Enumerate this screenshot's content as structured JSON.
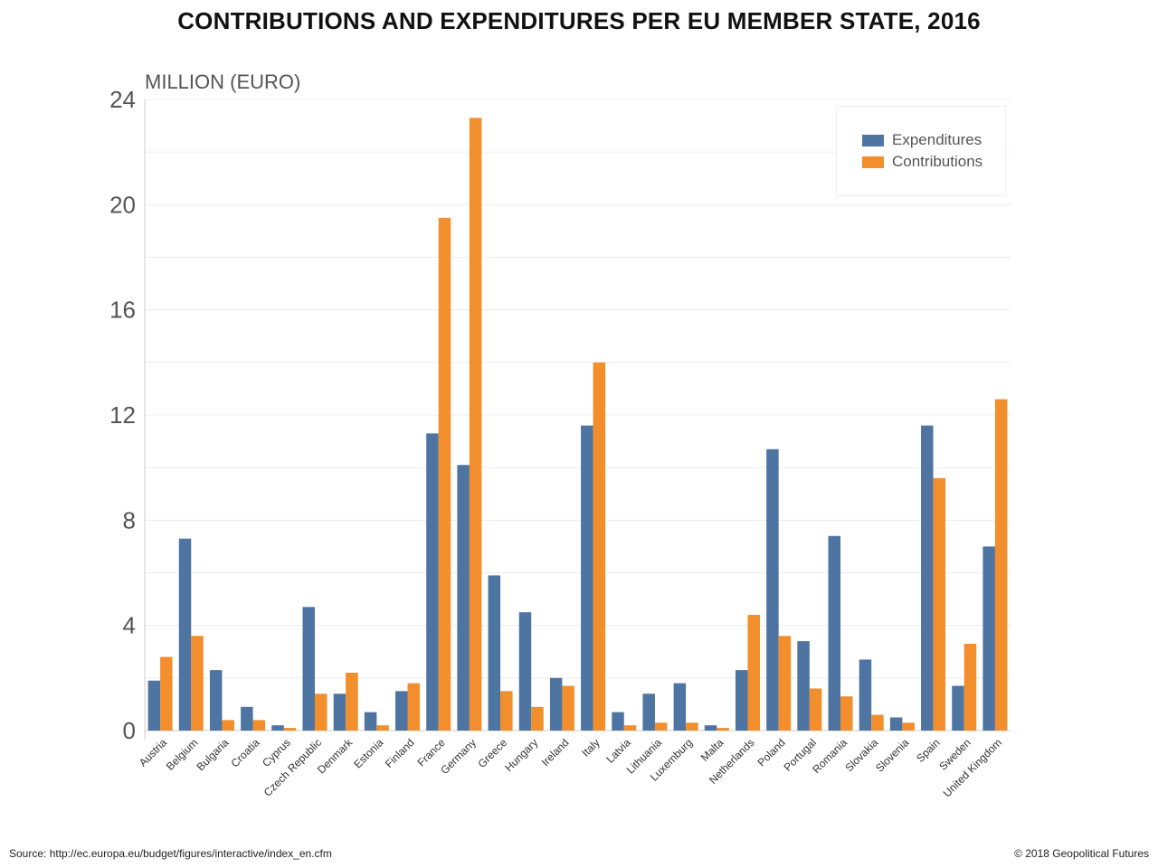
{
  "title": "CONTRIBUTIONS AND EXPENDITURES PER EU MEMBER STATE, 2016",
  "footer": {
    "source": "Source:  http://ec.europa.eu/budget/figures/interactive/index_en.cfm",
    "copyright": "© 2018 Geopolitical Futures"
  },
  "colors": {
    "expenditures": "#4e74a2",
    "contributions": "#f28e2b",
    "grid": "#ececec",
    "axis": "#cccccc"
  },
  "chart_data": {
    "type": "bar",
    "title": "CONTRIBUTIONS AND EXPENDITURES PER EU MEMBER STATE, 2016",
    "xlabel": "",
    "ylabel": "MILLION (EURO)",
    "ylim": [
      0,
      24
    ],
    "yticks": [
      "0",
      "4",
      "8",
      "12",
      "16",
      "20",
      "24"
    ],
    "grid": true,
    "legend_position": "top-right",
    "categories": [
      "Austria",
      "Belgium",
      "Bulgaria",
      "Croatia",
      "Cyprus",
      "Czech Republic",
      "Denmark",
      "Estonia",
      "Finland",
      "France",
      "Germany",
      "Greece",
      "Hungary",
      "Ireland",
      "Italy",
      "Latvia",
      "Lithuania",
      "Luxemburg",
      "Malta",
      "Netherlands",
      "Poland",
      "Portugal",
      "Romania",
      "Slovakia",
      "Slovenia",
      "Spain",
      "Sweden",
      "United Kingdom"
    ],
    "series": [
      {
        "name": "Expenditures",
        "values": [
          1.9,
          7.3,
          2.3,
          0.9,
          0.2,
          4.7,
          1.4,
          0.7,
          1.5,
          11.3,
          10.1,
          5.9,
          4.5,
          2.0,
          11.6,
          0.7,
          1.4,
          1.8,
          0.2,
          2.3,
          10.7,
          3.4,
          7.4,
          2.7,
          0.5,
          11.6,
          1.7,
          7.0
        ]
      },
      {
        "name": "Contributions",
        "values": [
          2.8,
          3.6,
          0.4,
          0.4,
          0.1,
          1.4,
          2.2,
          0.2,
          1.8,
          19.5,
          23.3,
          1.5,
          0.9,
          1.7,
          14.0,
          0.2,
          0.3,
          0.3,
          0.1,
          4.4,
          3.6,
          1.6,
          1.3,
          0.6,
          0.3,
          9.6,
          3.3,
          12.6
        ]
      }
    ]
  }
}
